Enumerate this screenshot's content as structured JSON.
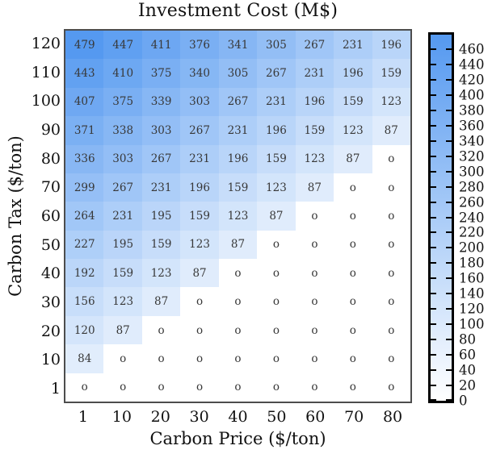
{
  "figure": {
    "title": "Investment Cost (M$)",
    "xlabel": "Carbon Price ($/ton)",
    "ylabel": "Carbon Tax ($/ton)"
  },
  "chart_data": {
    "type": "heatmap",
    "title": "Investment Cost (M$)",
    "xlabel": "Carbon Price ($/ton)",
    "ylabel": "Carbon Tax ($/ton)",
    "x_categories": [
      "1",
      "10",
      "20",
      "30",
      "40",
      "50",
      "60",
      "70",
      "80"
    ],
    "y_categories_top_to_bottom": [
      "120",
      "110",
      "100",
      "90",
      "80",
      "70",
      "60",
      "50",
      "40",
      "30",
      "20",
      "10",
      "1"
    ],
    "values": [
      [
        479,
        447,
        411,
        376,
        341,
        305,
        267,
        231,
        196
      ],
      [
        443,
        410,
        375,
        340,
        305,
        267,
        231,
        196,
        159
      ],
      [
        407,
        375,
        339,
        303,
        267,
        231,
        196,
        159,
        123
      ],
      [
        371,
        338,
        303,
        267,
        231,
        196,
        159,
        123,
        87
      ],
      [
        336,
        303,
        267,
        231,
        196,
        159,
        123,
        87,
        0
      ],
      [
        299,
        267,
        231,
        196,
        159,
        123,
        87,
        0,
        0
      ],
      [
        264,
        231,
        195,
        159,
        123,
        87,
        0,
        0,
        0
      ],
      [
        227,
        195,
        159,
        123,
        87,
        0,
        0,
        0,
        0
      ],
      [
        192,
        159,
        123,
        87,
        0,
        0,
        0,
        0,
        0
      ],
      [
        156,
        123,
        87,
        0,
        0,
        0,
        0,
        0,
        0
      ],
      [
        120,
        87,
        0,
        0,
        0,
        0,
        0,
        0,
        0
      ],
      [
        84,
        0,
        0,
        0,
        0,
        0,
        0,
        0,
        0
      ],
      [
        0,
        0,
        0,
        0,
        0,
        0,
        0,
        0,
        0
      ]
    ],
    "vmin": 0,
    "vmax": 479,
    "zero_display": "o",
    "cell_text_color": "#383838",
    "colormap": {
      "min_color": "#ffffff",
      "max_color": "#5599f0"
    },
    "colorbar": {
      "tick_labels_top_to_bottom": [
        460,
        440,
        420,
        400,
        380,
        360,
        340,
        320,
        300,
        280,
        260,
        240,
        220,
        200,
        180,
        160,
        140,
        120,
        100,
        80,
        60,
        40,
        20,
        0
      ]
    },
    "grid": false,
    "legend_position": "right-colorbar"
  }
}
